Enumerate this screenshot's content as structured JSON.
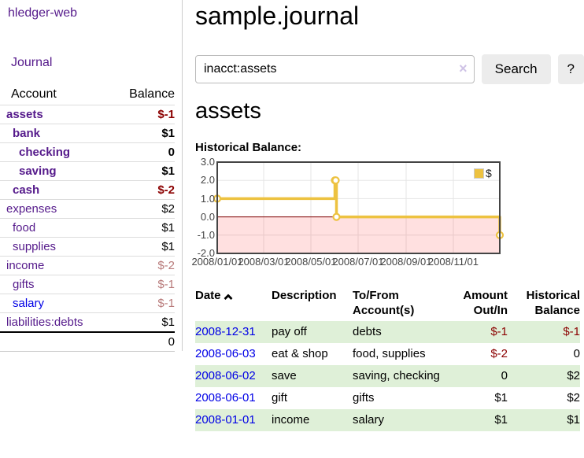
{
  "colors": {
    "link_visited": "#551a8b",
    "link_unvisited": "#0000e6",
    "negative": "#8b0000",
    "negative_muted": "#b87a7a",
    "row_stripe_green": "#dff0d8",
    "series_gold": "#edc240",
    "zero_line": "#800000"
  },
  "sidebar": {
    "brand": "hledger-web",
    "nav": {
      "journal": "Journal"
    },
    "accounts": {
      "col_account": "Account",
      "col_balance": "Balance",
      "rows": [
        {
          "account": "assets",
          "balance": "$-1",
          "indent": 0,
          "emphasis": true,
          "balance_tone": "negative"
        },
        {
          "account": "bank",
          "balance": "$1",
          "indent": 1,
          "emphasis": true,
          "balance_tone": "normal"
        },
        {
          "account": "checking",
          "balance": "0",
          "indent": 2,
          "emphasis": true,
          "balance_tone": "normal"
        },
        {
          "account": "saving",
          "balance": "$1",
          "indent": 2,
          "emphasis": true,
          "balance_tone": "normal"
        },
        {
          "account": "cash",
          "balance": "$-2",
          "indent": 1,
          "emphasis": true,
          "balance_tone": "negative"
        },
        {
          "account": "expenses",
          "balance": "$2",
          "indent": 0,
          "emphasis": false,
          "balance_tone": "normal"
        },
        {
          "account": "food",
          "balance": "$1",
          "indent": 1,
          "emphasis": false,
          "balance_tone": "normal"
        },
        {
          "account": "supplies",
          "balance": "$1",
          "indent": 1,
          "emphasis": false,
          "balance_tone": "normal"
        },
        {
          "account": "income",
          "balance": "$-2",
          "indent": 0,
          "emphasis": false,
          "balance_tone": "negative-muted"
        },
        {
          "account": "gifts",
          "balance": "$-1",
          "indent": 1,
          "emphasis": false,
          "balance_tone": "negative-muted"
        },
        {
          "account": "salary",
          "balance": "$-1",
          "indent": 1,
          "emphasis": false,
          "balance_tone": "negative-muted",
          "visited": false
        },
        {
          "account": "liabilities:debts",
          "balance": "$1",
          "indent": 0,
          "emphasis": false,
          "balance_tone": "normal"
        }
      ],
      "total": "0"
    }
  },
  "header": {
    "title": "sample.journal"
  },
  "search": {
    "value": "inacct:assets",
    "clear_icon": "×",
    "search_button": "Search",
    "help_button": "?"
  },
  "account_view": {
    "heading": "assets",
    "chart_title": "Historical Balance:"
  },
  "chart_data": {
    "type": "line",
    "title": "Historical Balance:",
    "style": "steps",
    "xlim_days": [
      0,
      365
    ],
    "ylim": [
      -2,
      3
    ],
    "grid": true,
    "x_ticks": [
      {
        "day": 0,
        "label": "2008/01/01"
      },
      {
        "day": 60,
        "label": "2008/03/01"
      },
      {
        "day": 121,
        "label": "2008/05/01"
      },
      {
        "day": 182,
        "label": "2008/07/01"
      },
      {
        "day": 244,
        "label": "2008/09/01"
      },
      {
        "day": 305,
        "label": "2008/11/01"
      }
    ],
    "y_ticks": [
      {
        "value": 3,
        "label": "3.0"
      },
      {
        "value": 2,
        "label": "2.0"
      },
      {
        "value": 1,
        "label": "1.0"
      },
      {
        "value": 0,
        "label": "0.0"
      },
      {
        "value": -1,
        "label": "-1.0"
      },
      {
        "value": -2,
        "label": "-2.0"
      }
    ],
    "series": [
      {
        "name": "$",
        "color": "#edc240",
        "points": [
          {
            "date": "2008-01-01",
            "day": 0,
            "value": 1
          },
          {
            "date": "2008-06-01",
            "day": 152,
            "value": 2
          },
          {
            "date": "2008-06-02",
            "day": 153,
            "value": 2
          },
          {
            "date": "2008-06-03",
            "day": 154,
            "value": 0
          },
          {
            "date": "2008-12-31",
            "day": 365,
            "value": -1
          }
        ]
      }
    ],
    "legend": {
      "label": "$",
      "position": "top-right",
      "swatch_color": "#edc240"
    },
    "negative_region_fill": "rgba(255,0,0,0.12)",
    "zero_line_color": "#800000",
    "border_color": "#444444",
    "gridline_color": "#e5e5e5"
  },
  "register": {
    "columns": {
      "date": "Date",
      "description": "Description",
      "account": "To/From Account(s)",
      "amount": "Amount Out/In",
      "balance": "Historical Balance"
    },
    "sort": {
      "column": "date",
      "direction": "ascending"
    },
    "rows": [
      {
        "date": "2008-12-31",
        "description": "pay off",
        "accounts": "debts",
        "amount": "$-1",
        "balance": "$-1",
        "amount_tone": "negative",
        "balance_tone": "negative"
      },
      {
        "date": "2008-06-03",
        "description": "eat & shop",
        "accounts": "food, supplies",
        "amount": "$-2",
        "balance": "0",
        "amount_tone": "negative",
        "balance_tone": "normal"
      },
      {
        "date": "2008-06-02",
        "description": "save",
        "accounts": "saving, checking",
        "amount": "0",
        "balance": "$2",
        "amount_tone": "normal",
        "balance_tone": "normal"
      },
      {
        "date": "2008-06-01",
        "description": "gift",
        "accounts": "gifts",
        "amount": "$1",
        "balance": "$2",
        "amount_tone": "normal",
        "balance_tone": "normal"
      },
      {
        "date": "2008-01-01",
        "description": "income",
        "accounts": "salary",
        "amount": "$1",
        "balance": "$1",
        "amount_tone": "normal",
        "balance_tone": "normal"
      }
    ]
  }
}
